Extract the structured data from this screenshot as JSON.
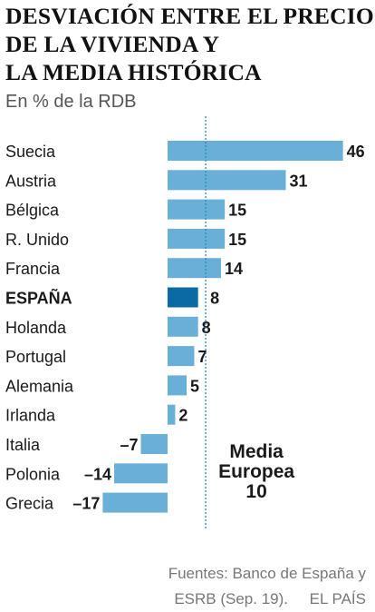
{
  "header": {
    "title_lines": [
      "DESVIACIÓN ENTRE EL PRECIO",
      "DE LA VIVIENDA Y",
      "LA MEDIA HISTÓRICA"
    ],
    "subtitle": "En % de la RDB"
  },
  "chart_data": {
    "type": "bar",
    "orientation": "horizontal",
    "title": "DESVIACIÓN ENTRE EL PRECIO DE LA VIVIENDA Y LA MEDIA HISTÓRICA",
    "subtitle": "En % de la RDB",
    "categories": [
      "Suecia",
      "Austria",
      "Bélgica",
      "R. Unido",
      "Francia",
      "ESPAÑA",
      "Holanda",
      "Portugal",
      "Alemania",
      "Irlanda",
      "Italia",
      "Polonia",
      "Grecia"
    ],
    "values": [
      46,
      31,
      15,
      15,
      14,
      8,
      8,
      7,
      5,
      2,
      -7,
      -14,
      -17
    ],
    "value_labels": [
      "46",
      "31",
      "15",
      "15",
      "14",
      "8",
      "8",
      "7",
      "5",
      "2",
      "–7",
      "–14",
      "–17"
    ],
    "highlight": "ESPAÑA",
    "colors": {
      "bar": "#6aafd8",
      "highlight": "#0b6aa3",
      "reference_line": "#2f86c0"
    },
    "reference": {
      "value": 10,
      "label_lines": [
        "Media",
        "Europea",
        "10"
      ]
    },
    "xlim": [
      -20,
      47
    ],
    "grid": false,
    "legend": "none"
  },
  "footer": {
    "source_line1": "Fuentes: Banco de España y",
    "source_line2": "ESRB (Sep. 19).",
    "brand": "EL PAÍS"
  }
}
